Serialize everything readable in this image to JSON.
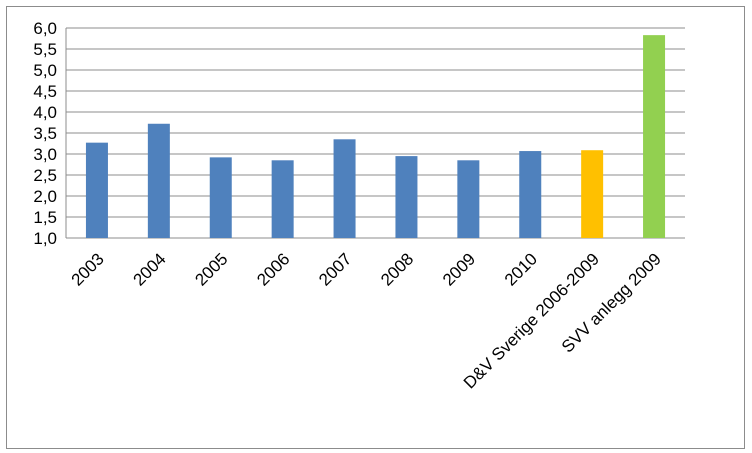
{
  "chart_data": {
    "type": "bar",
    "title": "",
    "xlabel": "",
    "ylabel": "",
    "ylim": [
      1.0,
      6.0
    ],
    "yticks": [
      "1,0",
      "1,5",
      "2,0",
      "2,5",
      "3,0",
      "3,5",
      "4,0",
      "4,5",
      "5,0",
      "5,5",
      "6,0"
    ],
    "grid": "horizontal",
    "legend": "none",
    "categories": [
      "2003",
      "2004",
      "2005",
      "2006",
      "2007",
      "2008",
      "2009",
      "2010",
      "D&V Sverige 2006-2009",
      "SVV anlegg 2009"
    ],
    "values": [
      3.27,
      3.72,
      2.92,
      2.85,
      3.35,
      2.95,
      2.85,
      3.07,
      3.09,
      5.83
    ],
    "bar_colors": [
      "#4f81bd",
      "#4f81bd",
      "#4f81bd",
      "#4f81bd",
      "#4f81bd",
      "#4f81bd",
      "#4f81bd",
      "#4f81bd",
      "#ffc000",
      "#92d050"
    ]
  }
}
